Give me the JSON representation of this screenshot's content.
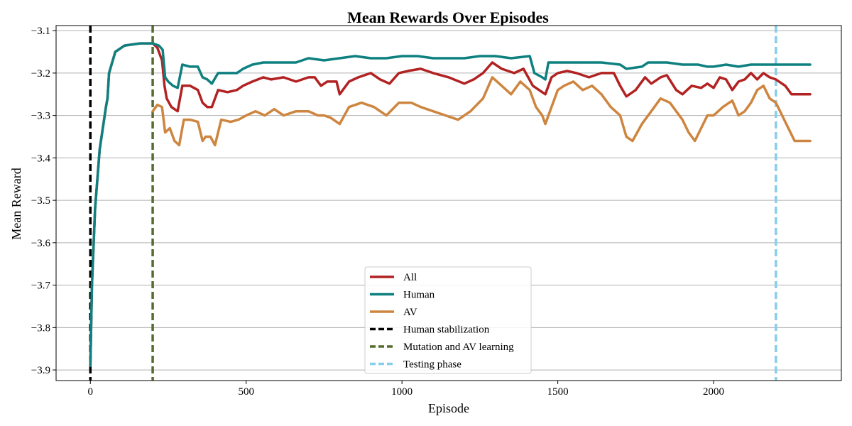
{
  "chart_data": {
    "type": "line",
    "title": "Mean Rewards Over Episodes",
    "xlabel": "Episode",
    "ylabel": "Mean Reward",
    "xlim": [
      -110,
      2410
    ],
    "ylim": [
      -3.925,
      -3.088
    ],
    "x_ticks": [
      0,
      500,
      1000,
      1500,
      2000
    ],
    "x_tick_labels": [
      "0",
      "500",
      "1000",
      "1500",
      "2000"
    ],
    "y_ticks": [
      -3.1,
      -3.2,
      -3.3,
      -3.4,
      -3.5,
      -3.6,
      -3.7,
      -3.8,
      -3.9
    ],
    "y_tick_labels": [
      "−3.1",
      "−3.2",
      "−3.3",
      "−3.4",
      "−3.5",
      "−3.6",
      "−3.7",
      "−3.8",
      "−3.9"
    ],
    "grid": "horizontal",
    "legend_position": "lower-center",
    "series": [
      {
        "name": "All",
        "color": "#b22222",
        "points": [
          [
            0,
            -3.89
          ],
          [
            5,
            -3.7
          ],
          [
            15,
            -3.52
          ],
          [
            30,
            -3.38
          ],
          [
            50,
            -3.28
          ],
          [
            55,
            -3.26
          ],
          [
            60,
            -3.2
          ],
          [
            80,
            -3.15
          ],
          [
            110,
            -3.135
          ],
          [
            160,
            -3.13
          ],
          [
            200,
            -3.13
          ],
          [
            215,
            -3.14
          ],
          [
            230,
            -3.17
          ],
          [
            238,
            -3.23
          ],
          [
            245,
            -3.26
          ],
          [
            260,
            -3.28
          ],
          [
            280,
            -3.29
          ],
          [
            295,
            -3.23
          ],
          [
            320,
            -3.23
          ],
          [
            345,
            -3.24
          ],
          [
            360,
            -3.27
          ],
          [
            375,
            -3.28
          ],
          [
            390,
            -3.28
          ],
          [
            410,
            -3.24
          ],
          [
            440,
            -3.245
          ],
          [
            470,
            -3.24
          ],
          [
            490,
            -3.23
          ],
          [
            520,
            -3.22
          ],
          [
            555,
            -3.21
          ],
          [
            580,
            -3.215
          ],
          [
            620,
            -3.21
          ],
          [
            660,
            -3.22
          ],
          [
            700,
            -3.21
          ],
          [
            720,
            -3.21
          ],
          [
            740,
            -3.23
          ],
          [
            760,
            -3.22
          ],
          [
            790,
            -3.22
          ],
          [
            800,
            -3.25
          ],
          [
            830,
            -3.22
          ],
          [
            860,
            -3.21
          ],
          [
            900,
            -3.2
          ],
          [
            930,
            -3.215
          ],
          [
            960,
            -3.225
          ],
          [
            990,
            -3.2
          ],
          [
            1020,
            -3.195
          ],
          [
            1060,
            -3.19
          ],
          [
            1100,
            -3.2
          ],
          [
            1150,
            -3.21
          ],
          [
            1200,
            -3.225
          ],
          [
            1230,
            -3.215
          ],
          [
            1260,
            -3.2
          ],
          [
            1290,
            -3.175
          ],
          [
            1320,
            -3.19
          ],
          [
            1360,
            -3.2
          ],
          [
            1390,
            -3.19
          ],
          [
            1420,
            -3.23
          ],
          [
            1440,
            -3.24
          ],
          [
            1460,
            -3.25
          ],
          [
            1480,
            -3.21
          ],
          [
            1500,
            -3.2
          ],
          [
            1530,
            -3.195
          ],
          [
            1560,
            -3.2
          ],
          [
            1600,
            -3.21
          ],
          [
            1640,
            -3.2
          ],
          [
            1680,
            -3.2
          ],
          [
            1700,
            -3.23
          ],
          [
            1720,
            -3.255
          ],
          [
            1750,
            -3.24
          ],
          [
            1780,
            -3.21
          ],
          [
            1800,
            -3.225
          ],
          [
            1830,
            -3.21
          ],
          [
            1850,
            -3.205
          ],
          [
            1880,
            -3.24
          ],
          [
            1900,
            -3.25
          ],
          [
            1930,
            -3.23
          ],
          [
            1960,
            -3.235
          ],
          [
            1980,
            -3.225
          ],
          [
            2000,
            -3.235
          ],
          [
            2020,
            -3.21
          ],
          [
            2040,
            -3.215
          ],
          [
            2060,
            -3.24
          ],
          [
            2080,
            -3.22
          ],
          [
            2100,
            -3.215
          ],
          [
            2120,
            -3.2
          ],
          [
            2140,
            -3.215
          ],
          [
            2160,
            -3.2
          ],
          [
            2180,
            -3.21
          ],
          [
            2200,
            -3.215
          ],
          [
            2230,
            -3.23
          ],
          [
            2250,
            -3.25
          ],
          [
            2280,
            -3.25
          ],
          [
            2310,
            -3.25
          ]
        ]
      },
      {
        "name": "Human",
        "color": "#0e8080",
        "points": [
          [
            0,
            -3.89
          ],
          [
            5,
            -3.7
          ],
          [
            15,
            -3.52
          ],
          [
            30,
            -3.38
          ],
          [
            50,
            -3.28
          ],
          [
            55,
            -3.26
          ],
          [
            60,
            -3.2
          ],
          [
            80,
            -3.15
          ],
          [
            110,
            -3.135
          ],
          [
            160,
            -3.13
          ],
          [
            200,
            -3.13
          ],
          [
            220,
            -3.135
          ],
          [
            232,
            -3.145
          ],
          [
            240,
            -3.21
          ],
          [
            250,
            -3.22
          ],
          [
            265,
            -3.23
          ],
          [
            280,
            -3.235
          ],
          [
            295,
            -3.18
          ],
          [
            320,
            -3.185
          ],
          [
            345,
            -3.185
          ],
          [
            360,
            -3.21
          ],
          [
            375,
            -3.215
          ],
          [
            390,
            -3.225
          ],
          [
            410,
            -3.2
          ],
          [
            440,
            -3.2
          ],
          [
            470,
            -3.2
          ],
          [
            490,
            -3.19
          ],
          [
            520,
            -3.18
          ],
          [
            555,
            -3.175
          ],
          [
            580,
            -3.175
          ],
          [
            620,
            -3.175
          ],
          [
            660,
            -3.175
          ],
          [
            700,
            -3.165
          ],
          [
            750,
            -3.17
          ],
          [
            800,
            -3.165
          ],
          [
            850,
            -3.16
          ],
          [
            900,
            -3.165
          ],
          [
            950,
            -3.165
          ],
          [
            1000,
            -3.16
          ],
          [
            1050,
            -3.16
          ],
          [
            1100,
            -3.165
          ],
          [
            1150,
            -3.165
          ],
          [
            1200,
            -3.165
          ],
          [
            1250,
            -3.16
          ],
          [
            1300,
            -3.16
          ],
          [
            1350,
            -3.165
          ],
          [
            1410,
            -3.16
          ],
          [
            1425,
            -3.2
          ],
          [
            1450,
            -3.21
          ],
          [
            1460,
            -3.215
          ],
          [
            1470,
            -3.175
          ],
          [
            1520,
            -3.175
          ],
          [
            1580,
            -3.175
          ],
          [
            1640,
            -3.175
          ],
          [
            1700,
            -3.18
          ],
          [
            1720,
            -3.19
          ],
          [
            1770,
            -3.185
          ],
          [
            1790,
            -3.175
          ],
          [
            1850,
            -3.175
          ],
          [
            1900,
            -3.18
          ],
          [
            1950,
            -3.18
          ],
          [
            1980,
            -3.185
          ],
          [
            2000,
            -3.185
          ],
          [
            2040,
            -3.18
          ],
          [
            2080,
            -3.185
          ],
          [
            2120,
            -3.18
          ],
          [
            2160,
            -3.18
          ],
          [
            2200,
            -3.18
          ],
          [
            2250,
            -3.18
          ],
          [
            2310,
            -3.18
          ]
        ]
      },
      {
        "name": "AV",
        "color": "#cd853f",
        "points": [
          [
            200,
            -3.29
          ],
          [
            215,
            -3.275
          ],
          [
            230,
            -3.28
          ],
          [
            240,
            -3.34
          ],
          [
            255,
            -3.33
          ],
          [
            270,
            -3.36
          ],
          [
            285,
            -3.37
          ],
          [
            300,
            -3.31
          ],
          [
            320,
            -3.31
          ],
          [
            345,
            -3.315
          ],
          [
            360,
            -3.36
          ],
          [
            370,
            -3.35
          ],
          [
            385,
            -3.35
          ],
          [
            400,
            -3.37
          ],
          [
            420,
            -3.31
          ],
          [
            450,
            -3.315
          ],
          [
            475,
            -3.31
          ],
          [
            500,
            -3.3
          ],
          [
            530,
            -3.29
          ],
          [
            560,
            -3.3
          ],
          [
            590,
            -3.285
          ],
          [
            620,
            -3.3
          ],
          [
            660,
            -3.29
          ],
          [
            700,
            -3.29
          ],
          [
            730,
            -3.3
          ],
          [
            750,
            -3.3
          ],
          [
            770,
            -3.305
          ],
          [
            800,
            -3.32
          ],
          [
            830,
            -3.28
          ],
          [
            870,
            -3.27
          ],
          [
            910,
            -3.28
          ],
          [
            950,
            -3.3
          ],
          [
            990,
            -3.27
          ],
          [
            1030,
            -3.27
          ],
          [
            1060,
            -3.28
          ],
          [
            1100,
            -3.29
          ],
          [
            1140,
            -3.3
          ],
          [
            1180,
            -3.31
          ],
          [
            1220,
            -3.29
          ],
          [
            1260,
            -3.26
          ],
          [
            1290,
            -3.21
          ],
          [
            1320,
            -3.23
          ],
          [
            1350,
            -3.25
          ],
          [
            1380,
            -3.22
          ],
          [
            1410,
            -3.24
          ],
          [
            1430,
            -3.28
          ],
          [
            1450,
            -3.3
          ],
          [
            1460,
            -3.32
          ],
          [
            1480,
            -3.28
          ],
          [
            1500,
            -3.24
          ],
          [
            1520,
            -3.23
          ],
          [
            1550,
            -3.22
          ],
          [
            1580,
            -3.24
          ],
          [
            1610,
            -3.23
          ],
          [
            1640,
            -3.25
          ],
          [
            1670,
            -3.28
          ],
          [
            1700,
            -3.3
          ],
          [
            1720,
            -3.35
          ],
          [
            1740,
            -3.36
          ],
          [
            1770,
            -3.32
          ],
          [
            1800,
            -3.29
          ],
          [
            1830,
            -3.26
          ],
          [
            1860,
            -3.27
          ],
          [
            1880,
            -3.29
          ],
          [
            1900,
            -3.31
          ],
          [
            1920,
            -3.34
          ],
          [
            1940,
            -3.36
          ],
          [
            1960,
            -3.33
          ],
          [
            1980,
            -3.3
          ],
          [
            2000,
            -3.3
          ],
          [
            2030,
            -3.28
          ],
          [
            2060,
            -3.265
          ],
          [
            2080,
            -3.3
          ],
          [
            2100,
            -3.29
          ],
          [
            2120,
            -3.27
          ],
          [
            2140,
            -3.24
          ],
          [
            2160,
            -3.23
          ],
          [
            2180,
            -3.26
          ],
          [
            2200,
            -3.27
          ],
          [
            2220,
            -3.3
          ],
          [
            2240,
            -3.33
          ],
          [
            2260,
            -3.36
          ],
          [
            2290,
            -3.36
          ],
          [
            2310,
            -3.36
          ]
        ]
      }
    ],
    "vlines": [
      {
        "name": "Human stabilization",
        "x": 0,
        "color": "#000000"
      },
      {
        "name": "Mutation and AV learning",
        "x": 200,
        "color": "#556b2f"
      },
      {
        "name": "Testing phase",
        "x": 2200,
        "color": "#87ceeb"
      }
    ]
  }
}
